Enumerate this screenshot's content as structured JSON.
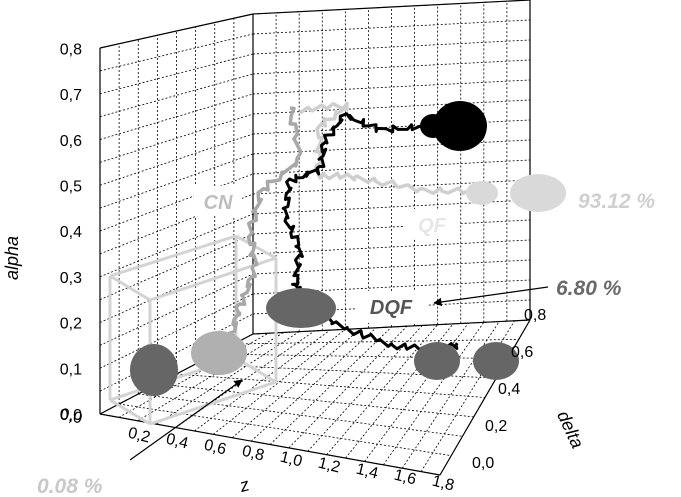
{
  "chart_data": {
    "type": "scatter",
    "title": "",
    "xlabel": "z",
    "ylabel": "alpha",
    "zlabel": "delta",
    "x_ticks": [
      "0,0",
      "0,2",
      "0,4",
      "0,6",
      "0,8",
      "1,0",
      "1,2",
      "1,4",
      "1,6",
      "1,8"
    ],
    "y_ticks": [
      "0,0",
      "0,1",
      "0,2",
      "0,3",
      "0,4",
      "0,5",
      "0,6",
      "0,7",
      "0,8"
    ],
    "z_ticks": [
      "0,0",
      "0,2",
      "0,4",
      "0,6",
      "0,8"
    ],
    "xlim": [
      0,
      1.8
    ],
    "ylim": [
      0,
      0.8
    ],
    "zlim": [
      0,
      0.8
    ],
    "grid": true,
    "regions": [
      {
        "name": "CN",
        "color": "#bdbdbd"
      },
      {
        "name": "QF",
        "color": "#e6e6e6"
      },
      {
        "name": "DQF",
        "color": "#555555"
      }
    ],
    "annotations": [
      {
        "text": "0.08 %",
        "color": "#c8c8c8"
      },
      {
        "text": "6.80 %",
        "color": "#6a6a6a"
      },
      {
        "text": "93.12 %",
        "color": "#cfcfcf"
      }
    ]
  }
}
